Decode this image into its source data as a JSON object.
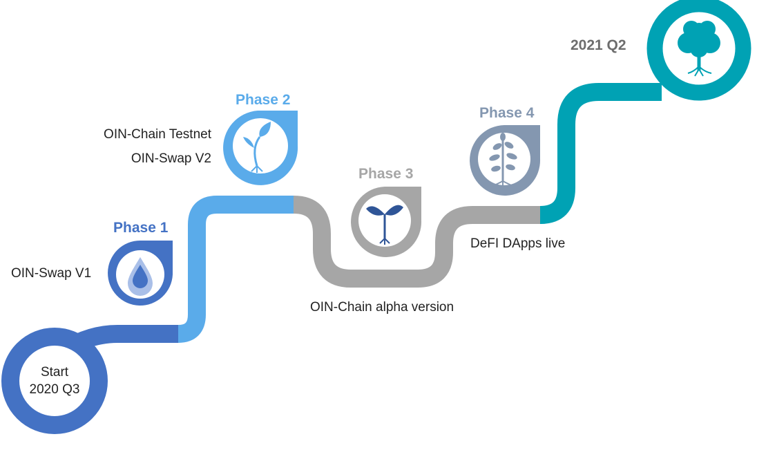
{
  "colors": {
    "phase1": "#4472c4",
    "phase2": "#5aabea",
    "phase3": "#a6a6a6",
    "phase4": "#8497b0",
    "final": "#00a2b4",
    "text": "#222222"
  },
  "start": {
    "line1": "Start",
    "line2": "2020 Q3"
  },
  "phases": [
    {
      "title": "Phase 1",
      "items": [
        "OIN-Swap V1"
      ],
      "icon": "water-drop-icon"
    },
    {
      "title": "Phase 2",
      "items": [
        "OIN-Chain Testnet",
        "OIN-Swap V2"
      ],
      "icon": "sprout-icon"
    },
    {
      "title": "Phase 3",
      "items": [
        "OIN-Chain alpha version"
      ],
      "icon": "seedling-icon"
    },
    {
      "title": "Phase 4",
      "items": [
        "DeFI DApps live"
      ],
      "icon": "young-tree-icon"
    }
  ],
  "end": {
    "label": "2021 Q2",
    "icon": "tree-icon"
  }
}
